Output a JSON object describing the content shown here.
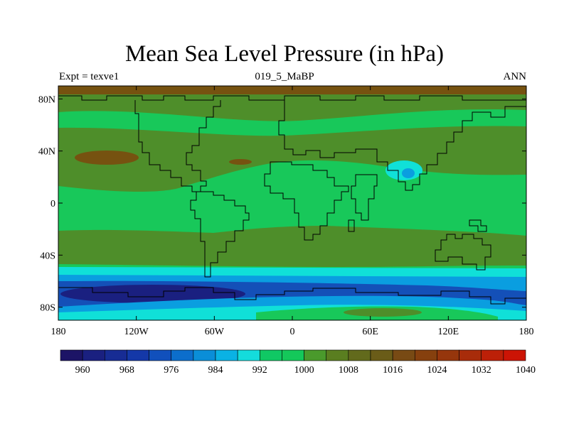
{
  "title": "Mean Sea Level Pressure (in hPa)",
  "subtitle_left": "Expt = texve1",
  "subtitle_center": "019_5_MaBP",
  "subtitle_right": "ANN",
  "chart_data": {
    "type": "heatmap",
    "title": "Mean Sea Level Pressure (in hPa)",
    "units": "hPa",
    "x_ticks": [
      "180",
      "120W",
      "60W",
      "0",
      "60E",
      "120E",
      "180"
    ],
    "x_tick_values": [
      -180,
      -120,
      -60,
      0,
      60,
      120,
      180
    ],
    "y_ticks": [
      "80N",
      "40N",
      "0",
      "40S",
      "80S"
    ],
    "y_tick_values": [
      80,
      40,
      0,
      -40,
      -80
    ],
    "xlim": [
      -180,
      180
    ],
    "ylim": [
      -90,
      90
    ],
    "colorbar": {
      "labels": [
        "960",
        "968",
        "976",
        "984",
        "992",
        "1000",
        "1008",
        "1016",
        "1024",
        "1032",
        "1040"
      ],
      "label_values": [
        960,
        968,
        976,
        984,
        992,
        1000,
        1008,
        1016,
        1024,
        1032,
        1040
      ],
      "bin_colors": [
        "#1c1466",
        "#1a2080",
        "#172c94",
        "#1438a8",
        "#1150bc",
        "#0c6ecc",
        "#0a8ed8",
        "#0ab2e4",
        "#14dcdc",
        "#10c864",
        "#14c85a",
        "#4a9a2c",
        "#5a7e20",
        "#626a1c",
        "#6a5c18",
        "#784a14",
        "#86400e",
        "#96360c",
        "#a82c0a",
        "#bc2008",
        "#cc1405"
      ]
    },
    "pressure_band_colors": {
      "960": "#1a2080",
      "976": "#1450b8",
      "992": "#0a9ee0",
      "1000": "#10e0d8",
      "1008": "#18c85a",
      "1016": "#4e8e2a",
      "1024": "#765210"
    }
  }
}
